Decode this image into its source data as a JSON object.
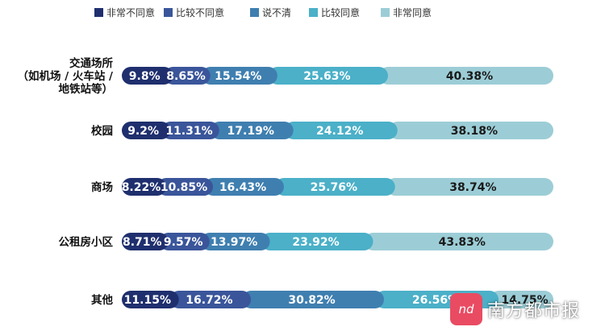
{
  "chart_data": {
    "type": "bar",
    "orientation": "horizontal",
    "stacked": true,
    "legend_position": "top",
    "categories": [
      [
        "交通场所",
        "（如机场 / 火车站 /",
        "地铁站等）"
      ],
      [
        "校园"
      ],
      [
        "商场"
      ],
      [
        "公租房小区"
      ],
      [
        "其他"
      ]
    ],
    "series": [
      {
        "name": "非常不同意",
        "color": "#1f2f6e",
        "values": [
          9.8,
          9.2,
          8.22,
          8.71,
          11.15
        ],
        "labels": [
          "9.8%",
          "9.2%",
          "8.22%",
          "8.71%",
          "11.15%"
        ]
      },
      {
        "name": "比较不同意",
        "color": "#3a559a",
        "values": [
          8.65,
          11.31,
          10.85,
          9.57,
          16.72
        ],
        "labels": [
          "8.65%",
          "11.31%",
          "10.85%",
          "9.57%",
          "16.72%"
        ]
      },
      {
        "name": "说不清",
        "color": "#3f7fb0",
        "values": [
          15.54,
          17.19,
          16.43,
          13.97,
          30.82
        ],
        "labels": [
          "15.54%",
          "17.19%",
          "16.43%",
          "13.97%",
          "30.82%"
        ]
      },
      {
        "name": "比较同意",
        "color": "#4bb0c8",
        "values": [
          25.63,
          24.12,
          25.76,
          23.92,
          26.56
        ],
        "labels": [
          "25.63%",
          "24.12%",
          "25.76%",
          "23.92%",
          "26.56%"
        ]
      },
      {
        "name": "非常同意",
        "color": "#9ccdd6",
        "values": [
          40.38,
          38.18,
          38.74,
          43.83,
          14.75
        ],
        "labels": [
          "40.38%",
          "38.18%",
          "38.74%",
          "43.83%",
          "14.75%"
        ]
      }
    ]
  },
  "watermark": {
    "logo_text": "nd",
    "brand_text": "南方都市报"
  }
}
